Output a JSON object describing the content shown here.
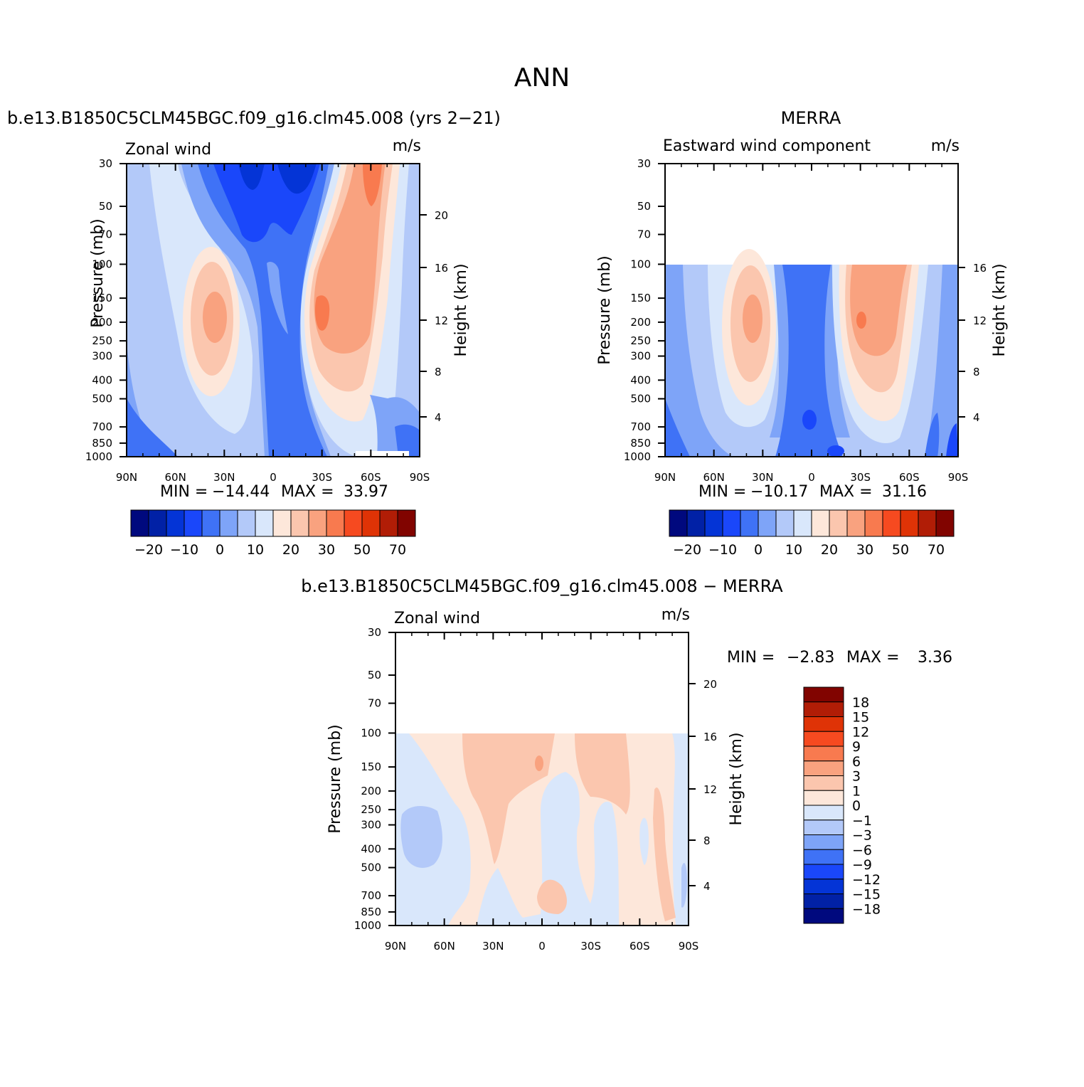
{
  "figure": {
    "title": "ANN"
  },
  "chart_data": [
    {
      "type": "heatmap",
      "panel": "model",
      "subtitle": "b.e13.B1850C5CLM45BGC.f09_g16.clm45.008 (yrs 2−21)",
      "left_label": "Zonal wind",
      "units": "m/s",
      "ylabel": "Pressure (mb)",
      "y2label": "Height (km)",
      "x_ticks": [
        "90N",
        "60N",
        "30N",
        "0",
        "30S",
        "60S",
        "90S"
      ],
      "y_ticks": [
        "30",
        "50",
        "70",
        "100",
        "150",
        "200",
        "250",
        "300",
        "400",
        "500",
        "700",
        "850",
        "1000"
      ],
      "y2_ticks": [
        "20",
        "16",
        "12",
        "8",
        "4"
      ],
      "min_label": "MIN =",
      "min_value": "−14.44",
      "max_label": "MAX =",
      "max_value": "33.97",
      "ylim": [
        30,
        1000
      ],
      "colorbar": {
        "levels": [
          -25,
          -20,
          -15,
          -10,
          -5,
          0,
          5,
          10,
          15,
          20,
          25,
          30,
          40,
          50,
          60,
          70
        ],
        "tick_labels": [
          "−20",
          "−10",
          "0",
          "10",
          "20",
          "30",
          "50",
          "70"
        ],
        "colors": [
          "#00097e",
          "#0121a6",
          "#0434d6",
          "#1a47fa",
          "#3f72f6",
          "#7ea4f8",
          "#b3c9f9",
          "#d9e7fb",
          "#fde7da",
          "#fbc6ae",
          "#f9a27f",
          "#f87a4f",
          "#f64a20",
          "#df3306",
          "#b11d06",
          "#810400"
        ]
      }
    },
    {
      "type": "heatmap",
      "panel": "obs",
      "subtitle": "MERRA",
      "left_label": "Eastward wind component",
      "units": "m/s",
      "ylabel": "Pressure (mb)",
      "y2label": "Height (km)",
      "x_ticks": [
        "90N",
        "60N",
        "30N",
        "0",
        "30S",
        "60S",
        "90S"
      ],
      "y_ticks": [
        "30",
        "50",
        "70",
        "100",
        "150",
        "200",
        "250",
        "300",
        "400",
        "500",
        "700",
        "850",
        "1000"
      ],
      "y2_ticks": [
        "16",
        "12",
        "8",
        "4"
      ],
      "min_label": "MIN =",
      "min_value": "−10.17",
      "max_label": "MAX =",
      "max_value": "31.16",
      "ylim": [
        30,
        1000
      ],
      "colorbar": {
        "levels": [
          -25,
          -20,
          -15,
          -10,
          -5,
          0,
          5,
          10,
          15,
          20,
          25,
          30,
          40,
          50,
          60,
          70
        ],
        "tick_labels": [
          "−20",
          "−10",
          "0",
          "10",
          "20",
          "30",
          "50",
          "70"
        ],
        "colors": [
          "#00097e",
          "#0121a6",
          "#0434d6",
          "#1a47fa",
          "#3f72f6",
          "#7ea4f8",
          "#b3c9f9",
          "#d9e7fb",
          "#fde7da",
          "#fbc6ae",
          "#f9a27f",
          "#f87a4f",
          "#f64a20",
          "#df3306",
          "#b11d06",
          "#810400"
        ]
      }
    },
    {
      "type": "heatmap",
      "panel": "difference",
      "subtitle": "b.e13.B1850C5CLM45BGC.f09_g16.clm45.008 − MERRA",
      "left_label": "Zonal wind",
      "units": "m/s",
      "ylabel": "Pressure (mb)",
      "y2label": "Height (km)",
      "x_ticks": [
        "90N",
        "60N",
        "30N",
        "0",
        "30S",
        "60S",
        "90S"
      ],
      "y_ticks": [
        "30",
        "50",
        "70",
        "100",
        "150",
        "200",
        "250",
        "300",
        "400",
        "500",
        "700",
        "850",
        "1000"
      ],
      "y2_ticks": [
        "20",
        "16",
        "12",
        "8",
        "4"
      ],
      "min_label": "MIN =",
      "min_value": "−2.83",
      "max_label": "MAX =",
      "max_value": "3.36",
      "ylim": [
        30,
        1000
      ],
      "colorbar": {
        "levels": [
          -18,
          -15,
          -12,
          -9,
          -6,
          -3,
          -1,
          0,
          1,
          3,
          6,
          9,
          12,
          15,
          18
        ],
        "tick_labels": [
          "18",
          "15",
          "12",
          "9",
          "6",
          "3",
          "1",
          "0",
          "−1",
          "−3",
          "−6",
          "−9",
          "−12",
          "−15",
          "−18"
        ],
        "colors": [
          "#810400",
          "#b11d06",
          "#df3306",
          "#f64a20",
          "#f87a4f",
          "#f9a27f",
          "#fbc6ae",
          "#fde7da",
          "#d9e7fb",
          "#b3c9f9",
          "#7ea4f8",
          "#3f72f6",
          "#1a47fa",
          "#0434d6",
          "#0121a6",
          "#00097e"
        ]
      }
    }
  ]
}
